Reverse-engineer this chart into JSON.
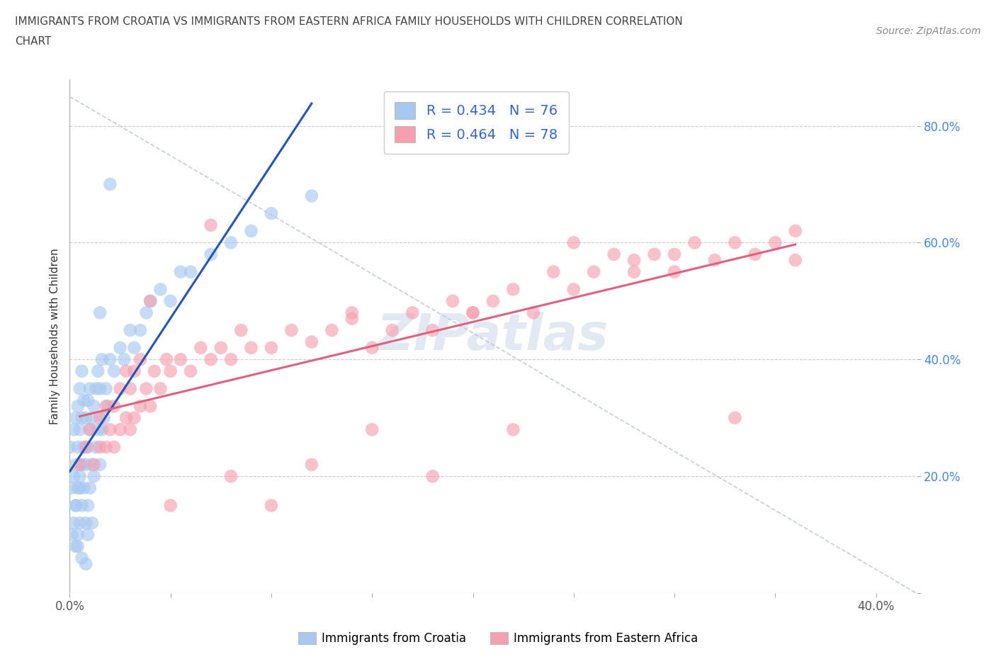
{
  "title_line1": "IMMIGRANTS FROM CROATIA VS IMMIGRANTS FROM EASTERN AFRICA FAMILY HOUSEHOLDS WITH CHILDREN CORRELATION",
  "title_line2": "CHART",
  "source": "Source: ZipAtlas.com",
  "ylabel": "Family Households with Children",
  "xlim": [
    0.0,
    0.42
  ],
  "ylim": [
    0.0,
    0.88
  ],
  "xticks": [
    0.0,
    0.05,
    0.1,
    0.15,
    0.2,
    0.25,
    0.3,
    0.35,
    0.4
  ],
  "yticks": [
    0.0,
    0.2,
    0.4,
    0.6,
    0.8
  ],
  "croatia_R": 0.434,
  "croatia_N": 76,
  "eastern_africa_R": 0.464,
  "eastern_africa_N": 78,
  "croatia_color": "#a8c8f0",
  "eastern_africa_color": "#f5a0b0",
  "croatia_line_color": "#2255bb",
  "eastern_africa_line_color": "#e06080",
  "diagonal_color": "#c0c8d8",
  "watermark_text": "ZIPatlas",
  "background_color": "#ffffff",
  "croatia_scatter_x": [
    0.0,
    0.001,
    0.001,
    0.002,
    0.002,
    0.002,
    0.003,
    0.003,
    0.003,
    0.003,
    0.004,
    0.004,
    0.004,
    0.004,
    0.005,
    0.005,
    0.005,
    0.005,
    0.006,
    0.006,
    0.006,
    0.006,
    0.007,
    0.007,
    0.007,
    0.008,
    0.008,
    0.008,
    0.009,
    0.009,
    0.009,
    0.01,
    0.01,
    0.01,
    0.011,
    0.011,
    0.012,
    0.012,
    0.013,
    0.013,
    0.014,
    0.014,
    0.015,
    0.015,
    0.016,
    0.016,
    0.017,
    0.018,
    0.019,
    0.02,
    0.022,
    0.025,
    0.027,
    0.03,
    0.032,
    0.035,
    0.038,
    0.04,
    0.045,
    0.05,
    0.055,
    0.06,
    0.07,
    0.08,
    0.09,
    0.1,
    0.12,
    0.015,
    0.008,
    0.004,
    0.006,
    0.009,
    0.011,
    0.003,
    0.005,
    0.02
  ],
  "croatia_scatter_y": [
    0.25,
    0.1,
    0.18,
    0.12,
    0.2,
    0.28,
    0.08,
    0.15,
    0.22,
    0.3,
    0.1,
    0.18,
    0.25,
    0.32,
    0.12,
    0.2,
    0.28,
    0.35,
    0.15,
    0.22,
    0.3,
    0.38,
    0.18,
    0.25,
    0.33,
    0.12,
    0.22,
    0.3,
    0.15,
    0.25,
    0.33,
    0.18,
    0.28,
    0.35,
    0.22,
    0.3,
    0.2,
    0.32,
    0.25,
    0.35,
    0.28,
    0.38,
    0.22,
    0.35,
    0.28,
    0.4,
    0.3,
    0.35,
    0.32,
    0.4,
    0.38,
    0.42,
    0.4,
    0.45,
    0.42,
    0.45,
    0.48,
    0.5,
    0.52,
    0.5,
    0.55,
    0.55,
    0.58,
    0.6,
    0.62,
    0.65,
    0.68,
    0.48,
    0.05,
    0.08,
    0.06,
    0.1,
    0.12,
    0.15,
    0.18,
    0.7
  ],
  "eastern_africa_scatter_x": [
    0.005,
    0.008,
    0.01,
    0.012,
    0.015,
    0.015,
    0.018,
    0.018,
    0.02,
    0.022,
    0.022,
    0.025,
    0.025,
    0.028,
    0.028,
    0.03,
    0.03,
    0.032,
    0.032,
    0.035,
    0.035,
    0.038,
    0.04,
    0.042,
    0.045,
    0.048,
    0.05,
    0.055,
    0.06,
    0.065,
    0.07,
    0.075,
    0.08,
    0.085,
    0.09,
    0.1,
    0.11,
    0.12,
    0.13,
    0.14,
    0.15,
    0.16,
    0.17,
    0.18,
    0.19,
    0.2,
    0.21,
    0.22,
    0.23,
    0.24,
    0.25,
    0.26,
    0.27,
    0.28,
    0.29,
    0.3,
    0.31,
    0.32,
    0.33,
    0.34,
    0.35,
    0.36,
    0.05,
    0.08,
    0.1,
    0.12,
    0.15,
    0.18,
    0.2,
    0.22,
    0.25,
    0.28,
    0.3,
    0.33,
    0.36,
    0.04,
    0.07,
    0.14
  ],
  "eastern_africa_scatter_y": [
    0.22,
    0.25,
    0.28,
    0.22,
    0.25,
    0.3,
    0.25,
    0.32,
    0.28,
    0.25,
    0.32,
    0.28,
    0.35,
    0.3,
    0.38,
    0.28,
    0.35,
    0.3,
    0.38,
    0.32,
    0.4,
    0.35,
    0.32,
    0.38,
    0.35,
    0.4,
    0.38,
    0.4,
    0.38,
    0.42,
    0.4,
    0.42,
    0.4,
    0.45,
    0.42,
    0.42,
    0.45,
    0.43,
    0.45,
    0.48,
    0.42,
    0.45,
    0.48,
    0.45,
    0.5,
    0.48,
    0.5,
    0.52,
    0.48,
    0.55,
    0.52,
    0.55,
    0.58,
    0.55,
    0.58,
    0.58,
    0.6,
    0.57,
    0.6,
    0.58,
    0.6,
    0.62,
    0.15,
    0.2,
    0.15,
    0.22,
    0.28,
    0.2,
    0.48,
    0.28,
    0.6,
    0.57,
    0.55,
    0.3,
    0.57,
    0.5,
    0.63,
    0.47
  ]
}
